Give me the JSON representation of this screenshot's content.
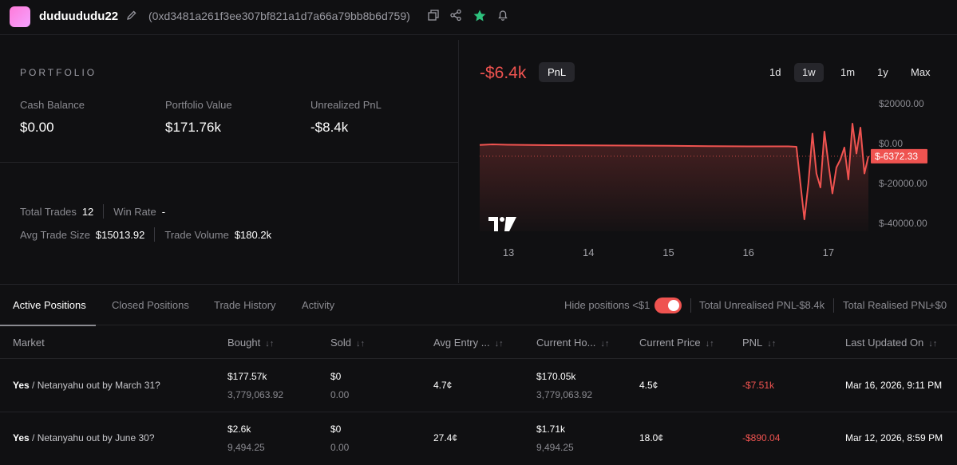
{
  "header": {
    "username": "duduududu22",
    "address": "(0xd3481a261f3ee307bf821a1d7a66a79bb8b6d759)",
    "icons": [
      "edit-icon",
      "copy-icon",
      "share-icon",
      "star-icon",
      "bell-icon"
    ]
  },
  "portfolio": {
    "title": "PORTFOLIO",
    "cash_balance_label": "Cash Balance",
    "cash_balance_value": "$0.00",
    "portfolio_value_label": "Portfolio Value",
    "portfolio_value_value": "$171.76k",
    "unrealized_pnl_label": "Unrealized PnL",
    "unrealized_pnl_value": "-$8.4k",
    "total_trades_label": "Total Trades",
    "total_trades_value": "12",
    "win_rate_label": "Win Rate",
    "win_rate_value": "-",
    "avg_trade_size_label": "Avg Trade Size",
    "avg_trade_size_value": "$15013.92",
    "trade_volume_label": "Trade Volume",
    "trade_volume_value": "$180.2k"
  },
  "pnl_chart": {
    "pnl_value": "-$6.4k",
    "badge": "PnL",
    "ranges": [
      "1d",
      "1w",
      "1m",
      "1y",
      "Max"
    ],
    "active_range": "1w",
    "current_marker": "$-6372.33",
    "colors": {
      "line": "#ef5350",
      "up": "#2ec27e"
    }
  },
  "chart_data": {
    "type": "area",
    "x_ticks": [
      "13",
      "14",
      "15",
      "16",
      "17"
    ],
    "y_ticks": [
      "$20000.00",
      "$0.00",
      "$-20000.00",
      "$-40000.00"
    ],
    "ylim": [
      -40000,
      20000
    ],
    "current_value": -6372.33,
    "series": [
      {
        "x": [
          12.64,
          12.8,
          13.0,
          13.5,
          14.0,
          14.5,
          15.0,
          15.5,
          16.0,
          16.5,
          16.6,
          16.65,
          16.7,
          16.75,
          16.8,
          16.85,
          16.9,
          16.95,
          17.0,
          17.05,
          17.1,
          17.15,
          17.2,
          17.25,
          17.3,
          17.35,
          17.4,
          17.45,
          17.5
        ],
        "values": [
          -700,
          -400,
          -600,
          -800,
          -900,
          -1000,
          -1100,
          -1300,
          -1400,
          -1400,
          -1600,
          -20000,
          -38000,
          -20000,
          5000,
          -15000,
          -22000,
          6000,
          -10000,
          -25000,
          -12000,
          -8000,
          -2000,
          -18000,
          10000,
          -5000,
          8000,
          -15000,
          -6372.33
        ]
      }
    ]
  },
  "tabs": {
    "items": [
      "Active Positions",
      "Closed Positions",
      "Trade History",
      "Activity"
    ],
    "active": "Active Positions",
    "hide_positions_label": "Hide positions <$1",
    "total_unrealised_label": "Total Unrealised PNL",
    "total_unrealised_value": "-$8.4k",
    "total_realised_label": "Total Realised PNL",
    "total_realised_value": "+$0"
  },
  "table": {
    "columns": [
      "Market",
      "Bought",
      "Sold",
      "Avg Entry ...",
      "Current Ho...",
      "Current Price",
      "PNL",
      "Last Updated On"
    ],
    "rows": [
      {
        "outcome": "Yes",
        "market": "/ Netanyahu out by March 31?",
        "bought": "$177.57k",
        "bought_shares": "3,779,063.92",
        "sold": "$0",
        "sold_shares": "0.00",
        "avg_entry": "4.7¢",
        "current_holding": "$170.05k",
        "current_shares": "3,779,063.92",
        "current_price": "4.5¢",
        "pnl": "-$7.51k",
        "last_updated": "Mar 16, 2026, 9:11 PM"
      },
      {
        "outcome": "Yes",
        "market": "/ Netanyahu out by June 30?",
        "bought": "$2.6k",
        "bought_shares": "9,494.25",
        "sold": "$0",
        "sold_shares": "0.00",
        "avg_entry": "27.4¢",
        "current_holding": "$1.71k",
        "current_shares": "9,494.25",
        "current_price": "18.0¢",
        "pnl": "-$890.04",
        "last_updated": "Mar 12, 2026, 8:59 PM"
      }
    ]
  }
}
